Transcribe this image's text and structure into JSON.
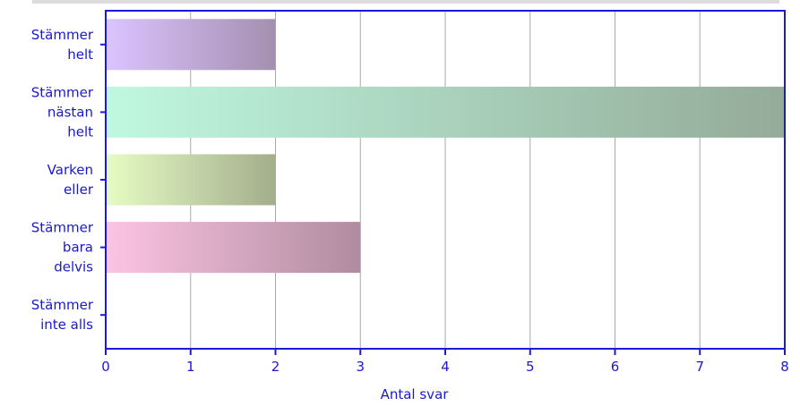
{
  "chart_data": {
    "type": "bar",
    "orientation": "horizontal",
    "categories": [
      [
        "Stämmer",
        "helt"
      ],
      [
        "Stämmer",
        "nästan",
        "helt"
      ],
      [
        "Varken",
        "eller"
      ],
      [
        "Stämmer",
        "bara",
        "delvis"
      ],
      [
        "Stämmer",
        "inte alls"
      ]
    ],
    "values": [
      2,
      8,
      2,
      3,
      0
    ],
    "xlabel": "Antal svar",
    "ylabel": "",
    "xlim": [
      0,
      8
    ],
    "xticks": [
      0,
      1,
      2,
      3,
      4,
      5,
      6,
      7,
      8
    ],
    "grid": "vertical",
    "colors": [
      [
        "#dcc4ff",
        "#a58fb0"
      ],
      [
        "#bff8e0",
        "#94ab98"
      ],
      [
        "#e6fcc4",
        "#a3ae8c"
      ],
      [
        "#fcc4e3",
        "#b08ca0"
      ],
      [
        "#e0e0e0",
        "#a0a0a0"
      ]
    ],
    "axis_color": "#1a1add",
    "grid_color": "#aaaaaa"
  }
}
